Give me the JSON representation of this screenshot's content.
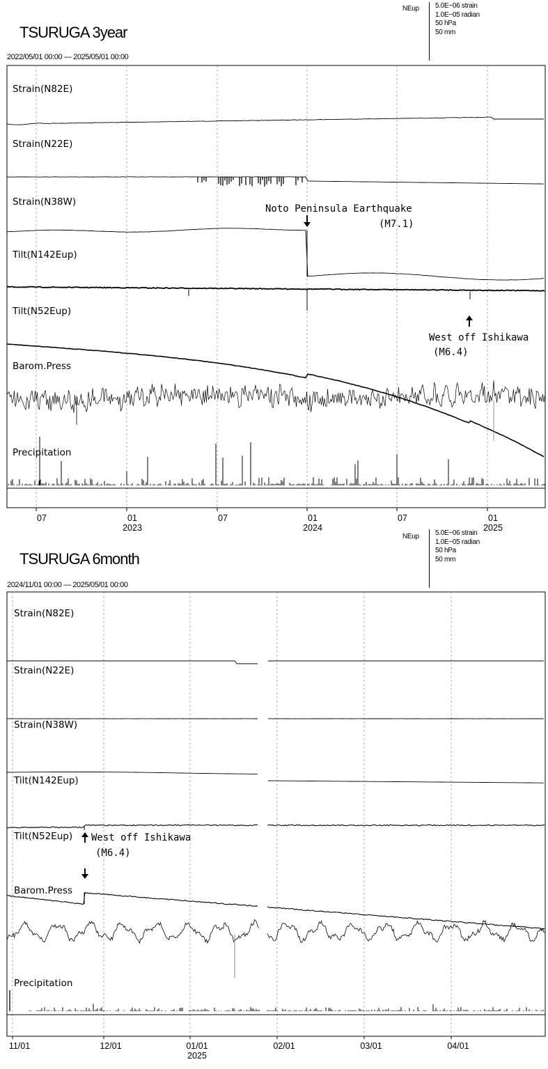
{
  "chart_data": [
    {
      "type": "line",
      "title": "TSURUGA 3year",
      "date_range": "2022/05/01 00:00 — 2025/05/01 00:00",
      "scale_direction": "NEup",
      "scale": [
        "5.0E−06 strain",
        "1.0E−05 radian",
        "50 hPa",
        "50 mm"
      ],
      "channels": [
        "Strain(N82E)",
        "Strain(N22E)",
        "Strain(N38W)",
        "Tilt(N142Eup)",
        "Tilt(N52Eup)",
        "Barom.Press",
        "Precipitation"
      ],
      "x_ticks": [
        {
          "month": "07",
          "year": ""
        },
        {
          "month": "01",
          "year": "2023"
        },
        {
          "month": "07",
          "year": ""
        },
        {
          "month": "01",
          "year": "2024"
        },
        {
          "month": "07",
          "year": ""
        },
        {
          "month": "01",
          "year": "2025"
        }
      ],
      "annotations": [
        {
          "text": "Noto Peninsula Earthquake",
          "magnitude": "(M7.1)",
          "date": "2024-01-01"
        },
        {
          "text": "West off Ishikawa",
          "magnitude": "(M6.4)",
          "date": "2024-11-26"
        }
      ],
      "grid": true
    },
    {
      "type": "line",
      "title": "TSURUGA 6month",
      "date_range": "2024/11/01 00:00 — 2025/05/01 00:00",
      "scale_direction": "NEup",
      "scale": [
        "5.0E−06 strain",
        "1.0E−05 radian",
        "50 hPa",
        "50 mm"
      ],
      "channels": [
        "Strain(N82E)",
        "Strain(N22E)",
        "Strain(N38W)",
        "Tilt(N142Eup)",
        "Tilt(N52Eup)",
        "Barom.Press",
        "Precipitation"
      ],
      "x_ticks": [
        {
          "month": "11/01",
          "year": ""
        },
        {
          "month": "12/01",
          "year": ""
        },
        {
          "month": "01/01",
          "year": "2025"
        },
        {
          "month": "02/01",
          "year": ""
        },
        {
          "month": "03/01",
          "year": ""
        },
        {
          "month": "04/01",
          "year": ""
        }
      ],
      "annotations": [
        {
          "text": "West off Ishikawa",
          "magnitude": "(M6.4)",
          "date": "2024-11-26"
        }
      ],
      "grid": true
    }
  ]
}
